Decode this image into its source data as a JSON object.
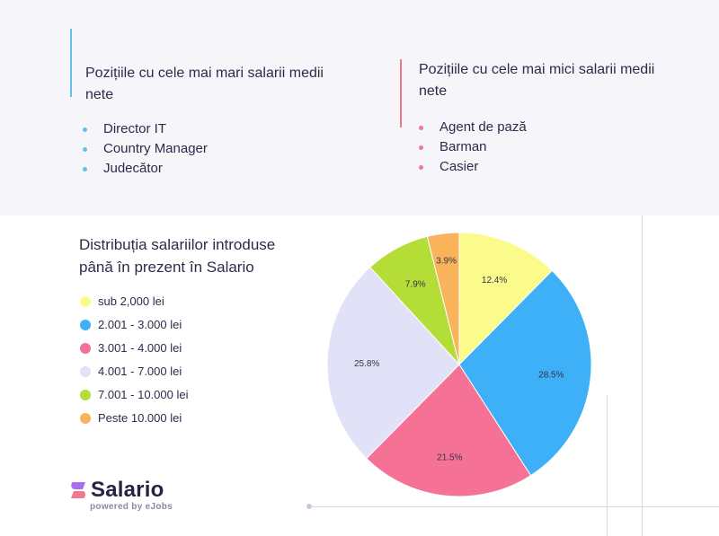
{
  "highest": {
    "title": "Pozițiile cu cele mai mari salarii medii nete",
    "items": [
      "Director IT",
      "Country Manager",
      "Judecător"
    ],
    "accent_color": "#5fc4e6"
  },
  "lowest": {
    "title": "Pozițiile cu cele mai mici salarii medii nete",
    "items": [
      "Agent de pază",
      "Barman",
      "Casier"
    ],
    "accent_color": "#f07890"
  },
  "distribution": {
    "title": "Distribuția salariilor introduse până în prezent în Salario"
  },
  "chart_data": {
    "type": "pie",
    "title": "",
    "legend_position": "left",
    "slices": [
      {
        "label": "sub 2,000 lei",
        "value": 12.4,
        "display": "12.4%",
        "color": "#fbfb8c"
      },
      {
        "label": "2.001 - 3.000 lei",
        "value": 28.5,
        "display": "28.5%",
        "color": "#3db0f7"
      },
      {
        "label": "3.001 - 4.000 lei",
        "value": 21.5,
        "display": "21.5%",
        "color": "#f57296"
      },
      {
        "label": "4.001 - 7.000 lei",
        "value": 25.8,
        "display": "25.8%",
        "color": "#e1e2f7"
      },
      {
        "label": "7.001 - 10.000 lei",
        "value": 7.9,
        "display": "7.9%",
        "color": "#b5dd37"
      },
      {
        "label": "Peste 10.000 lei",
        "value": 3.9,
        "display": "3.9%",
        "color": "#f9b35b"
      }
    ]
  },
  "brand": {
    "name": "Salario",
    "tagline": "powered by eJobs",
    "logo_icon": "salario-s-logo-icon",
    "logo_colors": [
      "#a96df2",
      "#f07890"
    ]
  }
}
